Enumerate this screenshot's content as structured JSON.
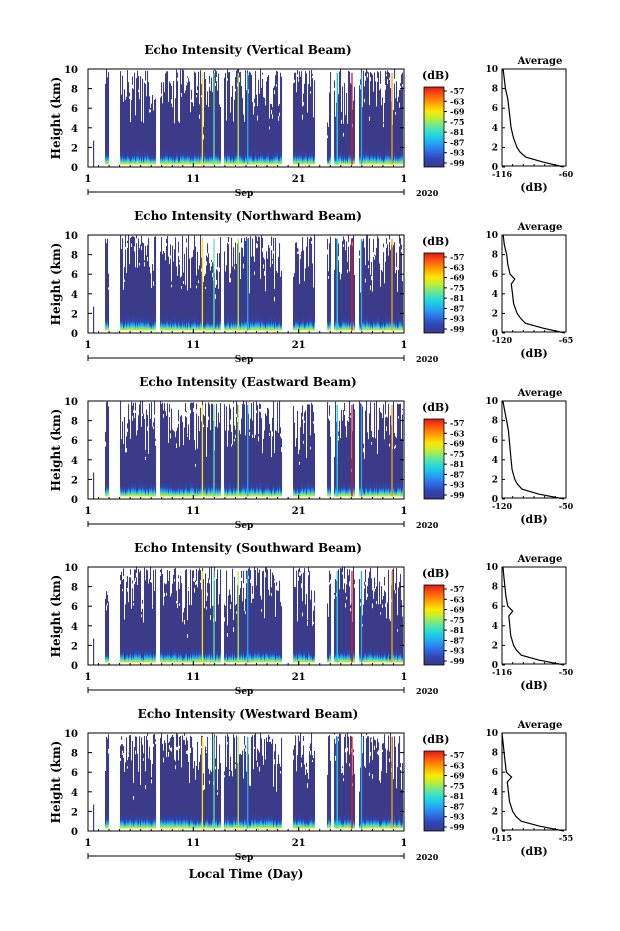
{
  "xaxis": {
    "ticks": [
      "1",
      "11",
      "21",
      "1"
    ],
    "tick_days": [
      1,
      11,
      21,
      31
    ],
    "month_label": "Sep",
    "year_label": "2020",
    "title": "Local Time (Day)"
  },
  "colorbar": {
    "unit": "(dB)",
    "ticks": [
      "-57",
      "-63",
      "-69",
      "-75",
      "-81",
      "-87",
      "-93",
      "-99"
    ],
    "colors": [
      "#3b3b8a",
      "#2f46b4",
      "#2f6fe6",
      "#24a6f2",
      "#1fd6e0",
      "#5fe6a0",
      "#b8ee3e",
      "#ffe600",
      "#ffa000",
      "#ff5a10",
      "#e01818"
    ]
  },
  "colors": {
    "background_echo": "#3b3b8a",
    "frame": "#000000"
  },
  "chart_data": [
    {
      "type": "heatmap",
      "title": "Echo Intensity (Vertical Beam)",
      "ylabel": "Height (km)",
      "yticks": [
        "0",
        "2",
        "4",
        "6",
        "8",
        "10"
      ],
      "ylim": [
        0,
        10
      ],
      "xlim": [
        1,
        31
      ],
      "profile": {
        "title": "Average",
        "xlabel": "(dB)",
        "xticks": [
          "-116",
          "-60"
        ],
        "xlim": [
          -116,
          -60
        ],
        "heights": [
          0,
          0.5,
          1,
          1.5,
          2,
          3,
          4,
          5,
          6,
          7,
          8,
          9,
          10
        ],
        "values": [
          -62,
          -80,
          -95,
          -100,
          -103,
          -106,
          -108,
          -109,
          -110,
          -111,
          -113,
          -114,
          -115
        ]
      }
    },
    {
      "type": "heatmap",
      "title": "Echo Intensity (Northward Beam)",
      "ylabel": "Height (km)",
      "yticks": [
        "0",
        "2",
        "4",
        "6",
        "8",
        "10"
      ],
      "ylim": [
        0,
        10
      ],
      "xlim": [
        1,
        31
      ],
      "profile": {
        "title": "Average",
        "xlabel": "(dB)",
        "xticks": [
          "-120",
          "-65"
        ],
        "xlim": [
          -120,
          -65
        ],
        "heights": [
          0,
          0.5,
          1,
          1.5,
          2,
          3,
          4,
          5,
          5.5,
          6,
          7,
          8,
          9,
          10
        ],
        "values": [
          -66,
          -85,
          -100,
          -104,
          -107,
          -110,
          -111,
          -112,
          -109,
          -113,
          -115,
          -116,
          -118,
          -119
        ]
      }
    },
    {
      "type": "heatmap",
      "title": "Echo Intensity (Eastward Beam)",
      "ylabel": "Height (km)",
      "yticks": [
        "0",
        "2",
        "4",
        "6",
        "8",
        "10"
      ],
      "ylim": [
        0,
        10
      ],
      "xlim": [
        1,
        31
      ],
      "profile": {
        "title": "Average",
        "xlabel": "(dB)",
        "xticks": [
          "-120",
          "-50"
        ],
        "xlim": [
          -120,
          -50
        ],
        "heights": [
          0,
          0.5,
          1,
          1.5,
          2,
          3,
          4,
          5,
          6,
          7,
          8,
          9,
          10
        ],
        "values": [
          -52,
          -80,
          -98,
          -103,
          -106,
          -109,
          -110,
          -111,
          -112,
          -113,
          -115,
          -117,
          -119
        ]
      }
    },
    {
      "type": "heatmap",
      "title": "Echo Intensity (Southward Beam)",
      "ylabel": "Height (km)",
      "yticks": [
        "0",
        "2",
        "4",
        "6",
        "8",
        "10"
      ],
      "ylim": [
        0,
        10
      ],
      "xlim": [
        1,
        31
      ],
      "profile": {
        "title": "Average",
        "xlabel": "(dB)",
        "xticks": [
          "-116",
          "-50"
        ],
        "xlim": [
          -116,
          -50
        ],
        "heights": [
          0,
          0.5,
          1,
          1.5,
          2,
          3,
          4,
          5,
          5.5,
          6,
          7,
          8,
          9,
          10
        ],
        "values": [
          -52,
          -78,
          -96,
          -101,
          -104,
          -107,
          -108,
          -109,
          -105,
          -110,
          -112,
          -113,
          -114,
          -115
        ]
      }
    },
    {
      "type": "heatmap",
      "title": "Echo Intensity (Westward Beam)",
      "ylabel": "Height (km)",
      "yticks": [
        "0",
        "2",
        "4",
        "6",
        "8",
        "10"
      ],
      "ylim": [
        0,
        10
      ],
      "xlim": [
        1,
        31
      ],
      "profile": {
        "title": "Average",
        "xlabel": "(dB)",
        "xticks": [
          "-115",
          "-55"
        ],
        "xlim": [
          -115,
          -55
        ],
        "heights": [
          0,
          0.5,
          1,
          1.5,
          2,
          3,
          4,
          5,
          5.5,
          6,
          7,
          8,
          9,
          10
        ],
        "values": [
          -57,
          -80,
          -97,
          -102,
          -105,
          -108,
          -109,
          -110,
          -106,
          -111,
          -112,
          -113,
          -114,
          -115
        ]
      }
    }
  ]
}
